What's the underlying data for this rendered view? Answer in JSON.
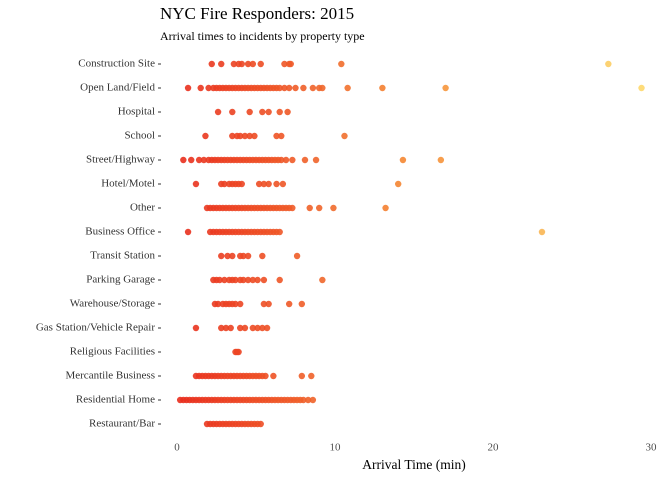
{
  "chart_data": {
    "type": "strip",
    "title": "NYC Fire Responders: 2015",
    "subtitle": "Arrival times to incidents by property type",
    "x_label": "Arrival Time (min)",
    "xlim": [
      -0.5,
      30
    ],
    "xticks": [
      0,
      10,
      20,
      30
    ],
    "grid": false,
    "colors": [
      "#e8291c",
      "#f58a33",
      "#fedb6e"
    ],
    "categories": [
      "Construction Site",
      "Open Land/Field",
      "Hospital",
      "School",
      "Street/Highway",
      "Hotel/Motel",
      "Other",
      "Business Office",
      "Transit Station",
      "Parking Garage",
      "Warehouse/Storage",
      "Gas Station/Vehicle Repair",
      "Religious Facilities",
      "Mercantile Business",
      "Residential Home",
      "Restaurant/Bar"
    ],
    "values": [
      [
        2.2,
        2.8,
        3.6,
        3.9,
        4.1,
        4.5,
        4.8,
        5.3,
        6.8,
        7.1,
        7.2,
        10.4,
        27.3
      ],
      [
        0.7,
        1.5,
        2.0,
        2.3,
        2.5,
        2.7,
        2.9,
        3.1,
        3.3,
        3.5,
        3.7,
        3.9,
        4.1,
        4.3,
        4.5,
        4.7,
        4.9,
        5.1,
        5.3,
        5.5,
        5.7,
        5.9,
        6.1,
        6.3,
        6.5,
        6.8,
        7.1,
        7.5,
        8.0,
        8.6,
        9.0,
        9.2,
        10.8,
        13.0,
        17.0,
        29.4
      ],
      [
        2.6,
        3.5,
        4.6,
        5.4,
        5.8,
        6.5,
        7.0
      ],
      [
        1.8,
        3.5,
        3.8,
        4.0,
        4.3,
        4.6,
        4.9,
        6.3,
        6.6,
        10.6
      ],
      [
        0.4,
        0.9,
        1.4,
        1.7,
        2.0,
        2.2,
        2.4,
        2.6,
        2.8,
        3.0,
        3.2,
        3.4,
        3.6,
        3.8,
        4.0,
        4.2,
        4.4,
        4.6,
        4.8,
        5.0,
        5.2,
        5.4,
        5.6,
        5.8,
        6.0,
        6.2,
        6.4,
        6.6,
        6.9,
        7.3,
        8.1,
        8.8,
        14.3,
        16.7
      ],
      [
        1.2,
        2.8,
        3.0,
        3.3,
        3.5,
        3.7,
        3.9,
        4.1,
        5.2,
        5.5,
        5.8,
        6.3,
        6.7,
        14.0
      ],
      [
        1.9,
        2.1,
        2.3,
        2.5,
        2.7,
        2.9,
        3.1,
        3.3,
        3.5,
        3.7,
        3.9,
        4.1,
        4.3,
        4.5,
        4.7,
        4.9,
        5.1,
        5.3,
        5.5,
        5.7,
        5.9,
        6.1,
        6.3,
        6.5,
        6.7,
        6.9,
        7.1,
        7.3,
        8.4,
        9.0,
        9.9,
        13.2
      ],
      [
        0.7,
        2.1,
        2.3,
        2.5,
        2.7,
        2.9,
        3.1,
        3.3,
        3.5,
        3.7,
        3.9,
        4.1,
        4.3,
        4.5,
        4.7,
        4.9,
        5.1,
        5.3,
        5.5,
        5.7,
        5.9,
        6.1,
        6.3,
        6.5,
        23.1
      ],
      [
        2.8,
        3.2,
        3.5,
        4.0,
        4.2,
        4.5,
        5.4,
        7.6
      ],
      [
        2.3,
        2.5,
        2.7,
        3.0,
        3.3,
        3.5,
        3.7,
        4.0,
        4.2,
        4.5,
        4.8,
        5.1,
        5.5,
        6.5,
        9.2
      ],
      [
        2.4,
        2.6,
        2.9,
        3.1,
        3.3,
        3.5,
        3.7,
        4.0,
        5.5,
        5.8,
        7.1,
        7.9
      ],
      [
        1.2,
        2.8,
        3.1,
        3.4,
        4.0,
        4.3,
        4.8,
        5.1,
        5.4,
        5.7
      ],
      [
        3.7,
        3.8,
        3.9
      ],
      [
        1.2,
        1.4,
        1.6,
        1.8,
        2.0,
        2.2,
        2.4,
        2.6,
        2.8,
        3.0,
        3.2,
        3.4,
        3.6,
        3.8,
        4.0,
        4.2,
        4.4,
        4.6,
        4.8,
        5.0,
        5.2,
        5.4,
        5.6,
        6.1,
        7.9,
        8.5
      ],
      [
        0.2,
        0.4,
        0.6,
        0.8,
        1.0,
        1.2,
        1.4,
        1.6,
        1.8,
        2.0,
        2.2,
        2.4,
        2.6,
        2.8,
        3.0,
        3.2,
        3.4,
        3.6,
        3.8,
        4.0,
        4.2,
        4.4,
        4.6,
        4.8,
        5.0,
        5.2,
        5.4,
        5.6,
        5.8,
        6.0,
        6.2,
        6.4,
        6.6,
        6.8,
        7.0,
        7.2,
        7.4,
        7.6,
        7.8,
        8.0,
        8.3,
        8.6
      ],
      [
        1.9,
        2.1,
        2.3,
        2.5,
        2.7,
        2.9,
        3.1,
        3.3,
        3.5,
        3.7,
        3.9,
        4.1,
        4.3,
        4.5,
        4.7,
        4.9,
        5.1,
        5.3
      ]
    ]
  }
}
